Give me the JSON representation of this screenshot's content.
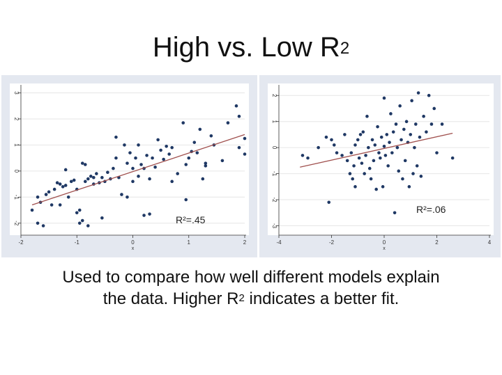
{
  "slide": {
    "title": "High vs. Low  R",
    "title_sup": "2",
    "caption_line1": "Used to compare how well different models explain",
    "caption_line2_pre": "the data.  Higher R",
    "caption_sup": "2",
    "caption_line2_post": " indicates a better fit."
  },
  "colors": {
    "points": "#1f3864",
    "fit_line": "#a0504e",
    "grid": "#e6e6e6"
  },
  "chart_data": [
    {
      "type": "scatter",
      "xlabel": "x",
      "ylabel": "",
      "xlim": [
        -2,
        2
      ],
      "ylim": [
        -2.3,
        3.2
      ],
      "x_ticks": [
        -2,
        -1,
        0,
        1,
        2
      ],
      "y_ticks": [
        -2,
        -1,
        0,
        1,
        2,
        3
      ],
      "grid": true,
      "annotation": "R²=.45",
      "annotation_position": "bottom-right",
      "fit_line": {
        "x": [
          -1.8,
          2.0
        ],
        "y": [
          -1.3,
          1.4
        ]
      },
      "points": [
        [
          -1.8,
          -1.5
        ],
        [
          -1.7,
          -1.0
        ],
        [
          -1.7,
          -2.0
        ],
        [
          -1.65,
          -1.2
        ],
        [
          -1.6,
          -2.1
        ],
        [
          -1.55,
          -0.9
        ],
        [
          -1.5,
          -0.8
        ],
        [
          -1.45,
          -1.3
        ],
        [
          -1.4,
          -0.7
        ],
        [
          -1.35,
          -0.45
        ],
        [
          -1.3,
          -0.5
        ],
        [
          -1.3,
          -1.3
        ],
        [
          -1.25,
          -0.6
        ],
        [
          -1.2,
          0.05
        ],
        [
          -1.2,
          -0.55
        ],
        [
          -1.15,
          -1.0
        ],
        [
          -1.1,
          -0.4
        ],
        [
          -1.05,
          -0.35
        ],
        [
          -1.0,
          -0.7
        ],
        [
          -1.0,
          -1.6
        ],
        [
          -0.95,
          -1.5
        ],
        [
          -0.95,
          -2.0
        ],
        [
          -0.9,
          -1.9
        ],
        [
          -0.9,
          0.3
        ],
        [
          -0.85,
          0.25
        ],
        [
          -0.85,
          -0.4
        ],
        [
          -0.8,
          -0.3
        ],
        [
          -0.8,
          -2.1
        ],
        [
          -0.75,
          -0.2
        ],
        [
          -0.7,
          -0.25
        ],
        [
          -0.7,
          -0.5
        ],
        [
          -0.65,
          -0.1
        ],
        [
          -0.6,
          -0.45
        ],
        [
          -0.55,
          -0.25
        ],
        [
          -0.55,
          -1.8
        ],
        [
          -0.5,
          -0.4
        ],
        [
          -0.45,
          -0.05
        ],
        [
          -0.4,
          -0.3
        ],
        [
          -0.35,
          0.1
        ],
        [
          -0.3,
          1.3
        ],
        [
          -0.3,
          0.5
        ],
        [
          -0.25,
          -0.25
        ],
        [
          -0.2,
          -0.9
        ],
        [
          -0.15,
          1.0
        ],
        [
          -0.1,
          0.3
        ],
        [
          -0.1,
          -1.0
        ],
        [
          -0.05,
          0.7
        ],
        [
          0.0,
          0.1
        ],
        [
          0.0,
          -0.4
        ],
        [
          0.05,
          0.5
        ],
        [
          0.1,
          1.0
        ],
        [
          0.1,
          -0.2
        ],
        [
          0.15,
          0.25
        ],
        [
          0.2,
          0.1
        ],
        [
          0.2,
          -1.7
        ],
        [
          0.25,
          0.6
        ],
        [
          0.3,
          -0.3
        ],
        [
          0.3,
          -1.65
        ],
        [
          0.35,
          0.5
        ],
        [
          0.4,
          0.15
        ],
        [
          0.45,
          1.2
        ],
        [
          0.5,
          0.8
        ],
        [
          0.55,
          0.45
        ],
        [
          0.6,
          0.95
        ],
        [
          0.65,
          0.65
        ],
        [
          0.7,
          -0.4
        ],
        [
          0.7,
          0.9
        ],
        [
          0.8,
          -0.1
        ],
        [
          0.9,
          1.85
        ],
        [
          0.95,
          0.25
        ],
        [
          0.95,
          -1.1
        ],
        [
          1.0,
          0.5
        ],
        [
          1.05,
          0.75
        ],
        [
          1.1,
          1.1
        ],
        [
          1.15,
          0.7
        ],
        [
          1.2,
          1.6
        ],
        [
          1.25,
          -0.3
        ],
        [
          1.3,
          0.3
        ],
        [
          1.3,
          0.2
        ],
        [
          1.4,
          1.35
        ],
        [
          1.45,
          1.0
        ],
        [
          1.6,
          0.4
        ],
        [
          1.7,
          1.85
        ],
        [
          1.85,
          2.5
        ],
        [
          1.9,
          2.1
        ],
        [
          1.9,
          0.9
        ],
        [
          2.0,
          1.25
        ],
        [
          2.0,
          0.65
        ]
      ]
    },
    {
      "type": "scatter",
      "xlabel": "x",
      "ylabel": "",
      "xlim": [
        -4,
        4
      ],
      "ylim": [
        -3.2,
        2.3
      ],
      "x_ticks": [
        -4,
        -2,
        0,
        2,
        4
      ],
      "y_ticks": [
        -3,
        -2,
        -1,
        0,
        1,
        2
      ],
      "grid": true,
      "annotation": "R²=.06",
      "annotation_position": "bottom-right",
      "fit_line": {
        "x": [
          -3.2,
          2.6
        ],
        "y": [
          -0.75,
          0.55
        ]
      },
      "points": [
        [
          -3.1,
          -0.3
        ],
        [
          -2.9,
          -0.4
        ],
        [
          -2.5,
          0.0
        ],
        [
          -2.2,
          0.4
        ],
        [
          -2.1,
          -2.1
        ],
        [
          -2.0,
          0.3
        ],
        [
          -1.9,
          0.1
        ],
        [
          -1.8,
          -0.2
        ],
        [
          -1.6,
          -0.3
        ],
        [
          -1.5,
          0.5
        ],
        [
          -1.4,
          -0.5
        ],
        [
          -1.3,
          -1.0
        ],
        [
          -1.25,
          -0.2
        ],
        [
          -1.2,
          -1.2
        ],
        [
          -1.15,
          -0.7
        ],
        [
          -1.1,
          0.1
        ],
        [
          -1.1,
          -1.5
        ],
        [
          -1.0,
          0.3
        ],
        [
          -0.95,
          -0.4
        ],
        [
          -0.9,
          0.5
        ],
        [
          -0.85,
          -0.6
        ],
        [
          -0.8,
          0.6
        ],
        [
          -0.75,
          -1.0
        ],
        [
          -0.7,
          -0.3
        ],
        [
          -0.65,
          1.2
        ],
        [
          -0.6,
          0.0
        ],
        [
          -0.55,
          -0.8
        ],
        [
          -0.5,
          -1.2
        ],
        [
          -0.45,
          0.3
        ],
        [
          -0.4,
          -0.5
        ],
        [
          -0.35,
          0.1
        ],
        [
          -0.3,
          -1.6
        ],
        [
          -0.25,
          0.8
        ],
        [
          -0.2,
          -0.2
        ],
        [
          -0.15,
          -0.4
        ],
        [
          -0.1,
          0.4
        ],
        [
          -0.05,
          -1.5
        ],
        [
          0.0,
          1.9
        ],
        [
          0.0,
          0.05
        ],
        [
          0.05,
          -0.3
        ],
        [
          0.1,
          0.5
        ],
        [
          0.15,
          -0.7
        ],
        [
          0.2,
          0.2
        ],
        [
          0.25,
          1.3
        ],
        [
          0.3,
          -0.2
        ],
        [
          0.35,
          0.6
        ],
        [
          0.4,
          -2.5
        ],
        [
          0.45,
          0.9
        ],
        [
          0.5,
          0.0
        ],
        [
          0.55,
          -0.9
        ],
        [
          0.6,
          1.6
        ],
        [
          0.65,
          0.3
        ],
        [
          0.7,
          -1.2
        ],
        [
          0.75,
          0.7
        ],
        [
          0.8,
          -0.5
        ],
        [
          0.85,
          1.0
        ],
        [
          0.9,
          0.2
        ],
        [
          0.95,
          -1.5
        ],
        [
          1.0,
          0.5
        ],
        [
          1.05,
          1.8
        ],
        [
          1.1,
          -1.0
        ],
        [
          1.15,
          0.0
        ],
        [
          1.2,
          0.9
        ],
        [
          1.25,
          -0.7
        ],
        [
          1.3,
          2.1
        ],
        [
          1.35,
          0.4
        ],
        [
          1.4,
          -1.1
        ],
        [
          1.5,
          1.2
        ],
        [
          1.6,
          0.6
        ],
        [
          1.7,
          2.0
        ],
        [
          1.8,
          0.9
        ],
        [
          1.9,
          1.5
        ],
        [
          2.0,
          -0.2
        ],
        [
          2.2,
          0.9
        ],
        [
          2.6,
          -0.4
        ]
      ]
    }
  ]
}
